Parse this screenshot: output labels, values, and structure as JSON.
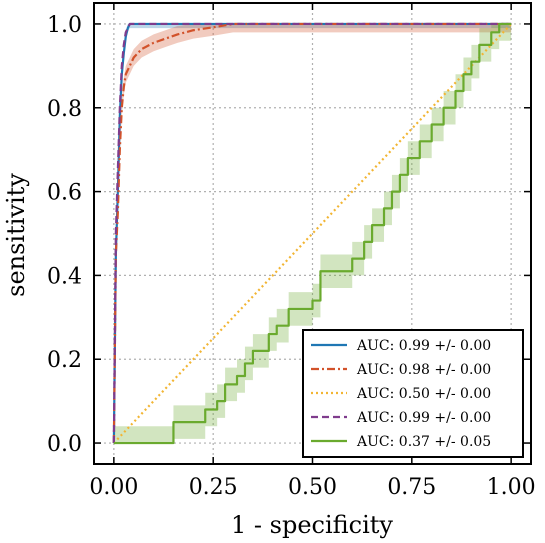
{
  "chart_data": {
    "type": "line",
    "title": "",
    "xlabel": "1 - specificity",
    "ylabel": "sensitivity",
    "xlim": [
      -0.05,
      1.05
    ],
    "ylim": [
      -0.05,
      1.05
    ],
    "xticks": [
      "0.00",
      "0.25",
      "0.50",
      "0.75",
      "1.00"
    ],
    "xtick_values": [
      0,
      0.25,
      0.5,
      0.75,
      1.0
    ],
    "yticks": [
      "0.0",
      "0.2",
      "0.4",
      "0.6",
      "0.8",
      "1.0"
    ],
    "ytick_values": [
      0,
      0.2,
      0.4,
      0.6,
      0.8,
      1.0
    ],
    "grid": true,
    "legend_position": "bottom-right",
    "series": [
      {
        "name": "AUC: 0.99 +/- 0.00",
        "color": "#1f77b4",
        "style": "solid",
        "x": [
          0,
          0.005,
          0.01,
          0.015,
          0.02,
          0.025,
          0.03,
          0.035,
          0.04,
          0.05,
          0.06,
          0.1,
          0.2,
          0.3,
          1.0
        ],
        "y": [
          0,
          0.45,
          0.6,
          0.78,
          0.88,
          0.93,
          0.97,
          0.99,
          1.0,
          1.0,
          1.0,
          1.0,
          1.0,
          1.0,
          1.0
        ],
        "band": 0.01
      },
      {
        "name": "AUC: 0.98 +/- 0.00",
        "color": "#d2522a",
        "style": "dashdot",
        "x": [
          0,
          0.005,
          0.01,
          0.015,
          0.02,
          0.025,
          0.03,
          0.04,
          0.05,
          0.07,
          0.1,
          0.13,
          0.16,
          0.2,
          0.25,
          0.3,
          0.35,
          1.0
        ],
        "y": [
          0,
          0.45,
          0.55,
          0.7,
          0.8,
          0.85,
          0.88,
          0.9,
          0.92,
          0.94,
          0.955,
          0.965,
          0.975,
          0.985,
          0.992,
          1.0,
          1.0,
          1.0
        ],
        "band": 0.02
      },
      {
        "name": "AUC: 0.50 +/- 0.00",
        "color": "#f2b533",
        "style": "dotted",
        "x": [
          0,
          1.0
        ],
        "y": [
          0,
          1.0
        ],
        "band": 0
      },
      {
        "name": "AUC: 0.99 +/- 0.00",
        "color": "#7f3c8d",
        "style": "dashed",
        "x": [
          0,
          0.005,
          0.01,
          0.015,
          0.02,
          0.025,
          0.03,
          0.035,
          0.04,
          0.05,
          1.0
        ],
        "y": [
          0,
          0.5,
          0.65,
          0.8,
          0.9,
          0.95,
          0.98,
          0.99,
          1.0,
          1.0,
          1.0
        ],
        "band": 0
      },
      {
        "name": "AUC: 0.37 +/- 0.05",
        "color": "#6aaa2e",
        "style": "solid",
        "x": [
          0,
          0.15,
          0.15,
          0.23,
          0.23,
          0.26,
          0.26,
          0.28,
          0.28,
          0.31,
          0.31,
          0.33,
          0.33,
          0.35,
          0.35,
          0.39,
          0.39,
          0.41,
          0.41,
          0.44,
          0.44,
          0.5,
          0.5,
          0.52,
          0.52,
          0.6,
          0.6,
          0.63,
          0.63,
          0.65,
          0.65,
          0.68,
          0.68,
          0.7,
          0.7,
          0.72,
          0.72,
          0.74,
          0.74,
          0.77,
          0.77,
          0.8,
          0.8,
          0.83,
          0.83,
          0.86,
          0.86,
          0.88,
          0.88,
          0.9,
          0.9,
          0.92,
          0.92,
          0.95,
          0.95,
          0.97,
          0.97,
          0.98,
          0.98,
          1.0
        ],
        "y": [
          0,
          0,
          0.05,
          0.05,
          0.08,
          0.08,
          0.1,
          0.1,
          0.14,
          0.14,
          0.16,
          0.16,
          0.19,
          0.19,
          0.22,
          0.22,
          0.26,
          0.26,
          0.28,
          0.28,
          0.32,
          0.32,
          0.34,
          0.34,
          0.41,
          0.41,
          0.44,
          0.44,
          0.48,
          0.48,
          0.52,
          0.52,
          0.56,
          0.56,
          0.6,
          0.6,
          0.64,
          0.64,
          0.68,
          0.68,
          0.72,
          0.72,
          0.76,
          0.76,
          0.8,
          0.8,
          0.84,
          0.84,
          0.88,
          0.88,
          0.91,
          0.91,
          0.95,
          0.95,
          0.98,
          0.98,
          1.0,
          1.0,
          1.0,
          1.0
        ],
        "band": 0.04
      }
    ]
  }
}
